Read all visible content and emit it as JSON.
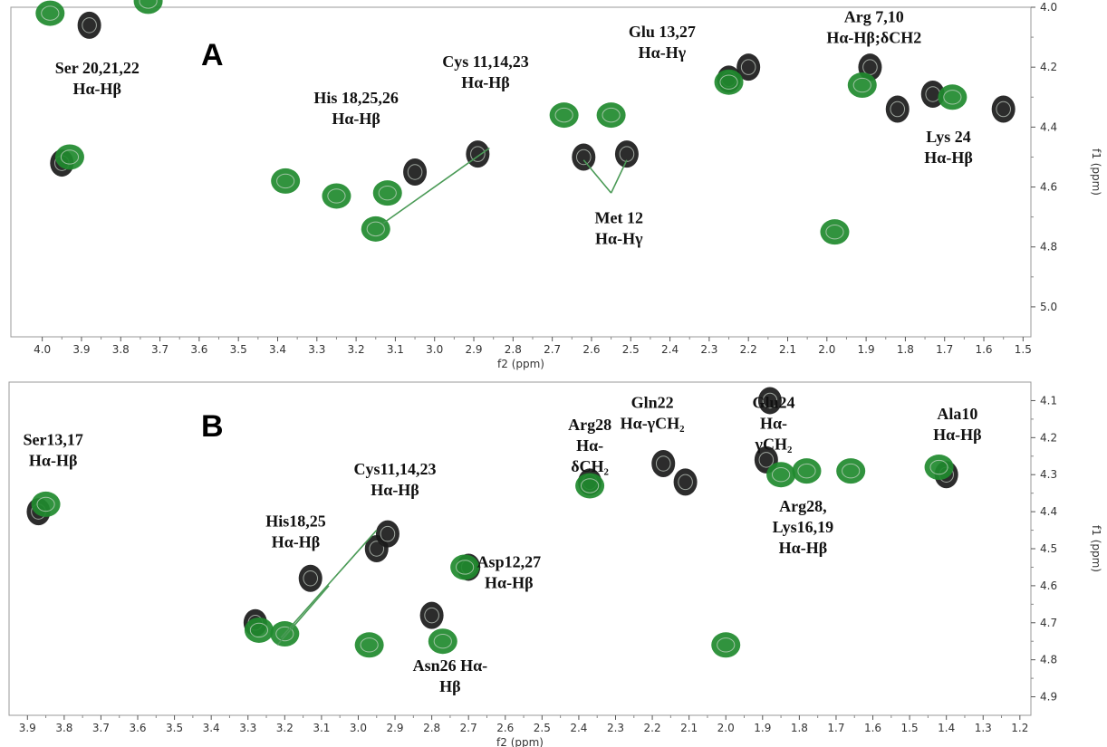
{
  "chart_data": [
    {
      "type": "scatter",
      "panel_label": "A",
      "xlabel": "f2 (ppm)",
      "ylabel": "f1 (ppm)",
      "xlim": [
        4.08,
        1.48
      ],
      "ylim": [
        4.0,
        5.1
      ],
      "x_ticks": [
        "4.0",
        "3.9",
        "3.8",
        "3.7",
        "3.6",
        "3.5",
        "3.4",
        "3.3",
        "3.2",
        "3.1",
        "3.0",
        "2.9",
        "2.8",
        "2.7",
        "2.6",
        "2.5",
        "2.4",
        "2.3",
        "2.2",
        "2.1",
        "2.0",
        "1.9",
        "1.8",
        "1.7",
        "1.6",
        "1.5"
      ],
      "y_ticks": [
        "4.0",
        "4.2",
        "4.4",
        "4.6",
        "4.8",
        "5.0"
      ],
      "grid": false,
      "series": [
        {
          "name": "black",
          "color": "#1a1a1a",
          "points": [
            {
              "x": 3.95,
              "y": 4.52
            },
            {
              "x": 3.05,
              "y": 4.55
            },
            {
              "x": 2.89,
              "y": 4.49
            },
            {
              "x": 2.62,
              "y": 4.5
            },
            {
              "x": 2.51,
              "y": 4.49
            },
            {
              "x": 2.2,
              "y": 4.2
            },
            {
              "x": 2.25,
              "y": 4.24
            },
            {
              "x": 1.89,
              "y": 4.2
            },
            {
              "x": 1.73,
              "y": 4.29
            },
            {
              "x": 1.55,
              "y": 4.34
            },
            {
              "x": 1.82,
              "y": 4.34
            },
            {
              "x": 3.88,
              "y": 4.06
            }
          ]
        },
        {
          "name": "green",
          "color": "#1f8a2e",
          "points": [
            {
              "x": 3.93,
              "y": 4.5
            },
            {
              "x": 3.12,
              "y": 4.62
            },
            {
              "x": 3.25,
              "y": 4.63
            },
            {
              "x": 3.38,
              "y": 4.58
            },
            {
              "x": 3.15,
              "y": 4.74
            },
            {
              "x": 2.67,
              "y": 4.36
            },
            {
              "x": 2.55,
              "y": 4.36
            },
            {
              "x": 2.25,
              "y": 4.25
            },
            {
              "x": 1.91,
              "y": 4.26
            },
            {
              "x": 1.68,
              "y": 4.3
            },
            {
              "x": 1.98,
              "y": 4.75
            },
            {
              "x": 3.98,
              "y": 4.02
            },
            {
              "x": 3.73,
              "y": 3.98
            }
          ]
        }
      ],
      "annotations": [
        {
          "lines": [
            "Ser 20,21,22",
            "Hα-Hβ"
          ],
          "x": 3.86,
          "y": 4.22
        },
        {
          "lines": [
            "His 18,25,26",
            "Hα-Hβ"
          ],
          "x": 3.2,
          "y": 4.32
        },
        {
          "lines": [
            "Cys 11,14,23",
            "Hα-Hβ"
          ],
          "x": 2.87,
          "y": 4.2
        },
        {
          "lines": [
            "Met 12",
            "Hα-Hγ"
          ],
          "x": 2.53,
          "y": 4.72
        },
        {
          "lines": [
            "Glu 13,27",
            "Hα-Hγ"
          ],
          "x": 2.42,
          "y": 4.1
        },
        {
          "lines": [
            "Arg 7,10",
            "Hα-Hβ;δCH2"
          ],
          "x": 1.88,
          "y": 4.05
        },
        {
          "lines": [
            "Lys 24",
            "Hα-Hβ"
          ],
          "x": 1.69,
          "y": 4.45
        }
      ]
    },
    {
      "type": "scatter",
      "panel_label": "B",
      "xlabel": "f2 (ppm)",
      "ylabel": "f1 (ppm)",
      "xlim": [
        3.95,
        1.17
      ],
      "ylim": [
        4.05,
        4.95
      ],
      "x_ticks": [
        "3.9",
        "3.8",
        "3.7",
        "3.6",
        "3.5",
        "3.4",
        "3.3",
        "3.2",
        "3.1",
        "3.0",
        "2.9",
        "2.8",
        "2.7",
        "2.6",
        "2.5",
        "2.4",
        "2.3",
        "2.2",
        "2.1",
        "2.0",
        "1.9",
        "1.8",
        "1.7",
        "1.6",
        "1.5",
        "1.4",
        "1.3",
        "1.2"
      ],
      "y_ticks": [
        "4.1",
        "4.2",
        "4.3",
        "4.4",
        "4.5",
        "4.6",
        "4.7",
        "4.8",
        "4.9"
      ],
      "grid": false,
      "series": [
        {
          "name": "black",
          "color": "#1a1a1a",
          "points": [
            {
              "x": 3.87,
              "y": 4.4
            },
            {
              "x": 3.13,
              "y": 4.58
            },
            {
              "x": 2.95,
              "y": 4.5
            },
            {
              "x": 2.92,
              "y": 4.46
            },
            {
              "x": 2.8,
              "y": 4.68
            },
            {
              "x": 2.7,
              "y": 4.55
            },
            {
              "x": 2.37,
              "y": 4.32
            },
            {
              "x": 2.17,
              "y": 4.27
            },
            {
              "x": 2.11,
              "y": 4.32
            },
            {
              "x": 1.89,
              "y": 4.26
            },
            {
              "x": 1.4,
              "y": 4.3
            },
            {
              "x": 3.28,
              "y": 4.7
            },
            {
              "x": 1.88,
              "y": 4.1
            }
          ]
        },
        {
          "name": "green",
          "color": "#1f8a2e",
          "points": [
            {
              "x": 3.85,
              "y": 4.38
            },
            {
              "x": 3.2,
              "y": 4.73
            },
            {
              "x": 2.77,
              "y": 4.75
            },
            {
              "x": 2.71,
              "y": 4.55
            },
            {
              "x": 2.37,
              "y": 4.33
            },
            {
              "x": 2.0,
              "y": 4.76
            },
            {
              "x": 1.85,
              "y": 4.3
            },
            {
              "x": 1.78,
              "y": 4.29
            },
            {
              "x": 1.66,
              "y": 4.29
            },
            {
              "x": 1.42,
              "y": 4.28
            },
            {
              "x": 3.27,
              "y": 4.72
            },
            {
              "x": 2.97,
              "y": 4.76
            }
          ]
        }
      ],
      "annotations": [
        {
          "lines": [
            "Ser13,17",
            "Hα-Hβ"
          ],
          "x": 3.83,
          "y": 4.22
        },
        {
          "lines": [
            "His18,25",
            "Hα-Hβ"
          ],
          "x": 3.17,
          "y": 4.44
        },
        {
          "lines": [
            "Cys11,14,23",
            "Hα-Hβ"
          ],
          "x": 2.9,
          "y": 4.3
        },
        {
          "lines": [
            "Arg28",
            "Hα-",
            "δCH₂"
          ],
          "x": 2.37,
          "y": 4.18
        },
        {
          "lines": [
            "Gln22",
            "Hα-γCH₂"
          ],
          "x": 2.2,
          "y": 4.12
        },
        {
          "lines": [
            "Glu24",
            "Hα-",
            "γCH₂"
          ],
          "x": 1.87,
          "y": 4.12
        },
        {
          "lines": [
            "Asp12,27",
            "Hα-Hβ"
          ],
          "x": 2.59,
          "y": 4.55
        },
        {
          "lines": [
            "Arg28,",
            "Lys16,19",
            "Hα-Hβ"
          ],
          "x": 1.79,
          "y": 4.4
        },
        {
          "lines": [
            "Ala10",
            "Hα-Hβ"
          ],
          "x": 1.37,
          "y": 4.15
        },
        {
          "lines": [
            "Asn26 Hα-",
            "Hβ"
          ],
          "x": 2.75,
          "y": 4.83
        }
      ]
    }
  ]
}
